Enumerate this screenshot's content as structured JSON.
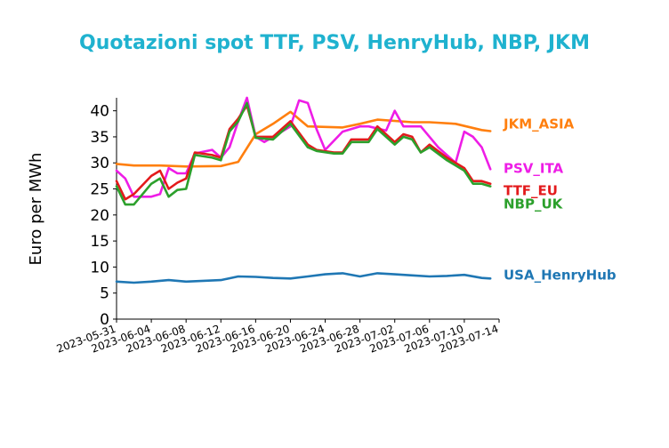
{
  "chart_data": {
    "type": "line",
    "title": "Quotazioni spot TTF, PSV, HenryHub, NBP, JKM",
    "xlabel": "",
    "ylabel": "Euro per MWh",
    "ylim": [
      0,
      42.5
    ],
    "xlim": [
      "2023-05-31",
      "2023-07-14"
    ],
    "yticks": [
      0,
      5,
      10,
      15,
      20,
      25,
      30,
      35,
      40
    ],
    "xticks": [
      "2023-05-31",
      "2023-06-04",
      "2023-06-08",
      "2023-06-12",
      "2023-06-16",
      "2023-06-20",
      "2023-06-24",
      "2023-06-28",
      "2023-07-02",
      "2023-07-06",
      "2023-07-10",
      "2023-07-14"
    ],
    "grid": false,
    "legend": "labels at right end of each line",
    "series": [
      {
        "name": "JKM_ASIA",
        "color": "#ff7f0e",
        "x": [
          "2023-05-31",
          "2023-06-02",
          "2023-06-05",
          "2023-06-08",
          "2023-06-12",
          "2023-06-14",
          "2023-06-16",
          "2023-06-18",
          "2023-06-20",
          "2023-06-22",
          "2023-06-26",
          "2023-06-28",
          "2023-06-30",
          "2023-07-04",
          "2023-07-06",
          "2023-07-09",
          "2023-07-12",
          "2023-07-13"
        ],
        "y": [
          29.8,
          29.5,
          29.5,
          29.3,
          29.4,
          30.2,
          35.5,
          37.5,
          39.8,
          37.0,
          36.8,
          37.5,
          38.3,
          37.8,
          37.8,
          37.5,
          36.3,
          36.1
        ]
      },
      {
        "name": "PSV_ITA",
        "color": "#ee1de6",
        "x": [
          "2023-05-31",
          "2023-06-01",
          "2023-06-02",
          "2023-06-04",
          "2023-06-05",
          "2023-06-06",
          "2023-06-07",
          "2023-06-08",
          "2023-06-09",
          "2023-06-11",
          "2023-06-12",
          "2023-06-13",
          "2023-06-14",
          "2023-06-15",
          "2023-06-16",
          "2023-06-17",
          "2023-06-19",
          "2023-06-20",
          "2023-06-21",
          "2023-06-22",
          "2023-06-23",
          "2023-06-24",
          "2023-06-26",
          "2023-06-28",
          "2023-06-29",
          "2023-07-01",
          "2023-07-02",
          "2023-07-03",
          "2023-07-05",
          "2023-07-06",
          "2023-07-07",
          "2023-07-09",
          "2023-07-10",
          "2023-07-11",
          "2023-07-12",
          "2023-07-13"
        ],
        "y": [
          28.5,
          27.0,
          23.5,
          23.5,
          24.0,
          29.0,
          28.0,
          28.0,
          31.8,
          32.5,
          31.0,
          33.0,
          38.0,
          42.5,
          35.0,
          34.0,
          36.0,
          37.0,
          42.0,
          41.5,
          36.5,
          32.5,
          36.0,
          37.0,
          37.0,
          36.2,
          40.0,
          37.0,
          37.0,
          35.0,
          33.0,
          30.0,
          36.0,
          35.0,
          33.0,
          28.8
        ]
      },
      {
        "name": "TTF_EU",
        "color": "#e31a1c",
        "x": [
          "2023-05-31",
          "2023-06-01",
          "2023-06-02",
          "2023-06-04",
          "2023-06-05",
          "2023-06-06",
          "2023-06-07",
          "2023-06-08",
          "2023-06-09",
          "2023-06-11",
          "2023-06-12",
          "2023-06-13",
          "2023-06-14",
          "2023-06-15",
          "2023-06-16",
          "2023-06-18",
          "2023-06-20",
          "2023-06-22",
          "2023-06-23",
          "2023-06-25",
          "2023-06-26",
          "2023-06-27",
          "2023-06-29",
          "2023-06-30",
          "2023-07-02",
          "2023-07-03",
          "2023-07-04",
          "2023-07-05",
          "2023-07-06",
          "2023-07-08",
          "2023-07-10",
          "2023-07-11",
          "2023-07-12",
          "2023-07-13"
        ],
        "y": [
          26.5,
          23.0,
          24.0,
          27.5,
          28.5,
          25.0,
          26.2,
          27.0,
          32.0,
          31.5,
          31.0,
          36.5,
          38.5,
          41.0,
          35.0,
          35.0,
          38.0,
          33.5,
          32.5,
          32.0,
          32.0,
          34.5,
          34.5,
          37.0,
          34.0,
          35.5,
          35.0,
          32.0,
          33.5,
          31.0,
          29.0,
          26.5,
          26.5,
          26.0
        ]
      },
      {
        "name": "NBP_UK",
        "color": "#2ca02c",
        "x": [
          "2023-05-31",
          "2023-06-01",
          "2023-06-02",
          "2023-06-04",
          "2023-06-05",
          "2023-06-06",
          "2023-06-07",
          "2023-06-08",
          "2023-06-09",
          "2023-06-11",
          "2023-06-12",
          "2023-06-13",
          "2023-06-14",
          "2023-06-15",
          "2023-06-16",
          "2023-06-18",
          "2023-06-20",
          "2023-06-22",
          "2023-06-23",
          "2023-06-25",
          "2023-06-26",
          "2023-06-27",
          "2023-06-29",
          "2023-06-30",
          "2023-07-02",
          "2023-07-03",
          "2023-07-04",
          "2023-07-05",
          "2023-07-06",
          "2023-07-08",
          "2023-07-10",
          "2023-07-11",
          "2023-07-12",
          "2023-07-13"
        ],
        "y": [
          25.5,
          22.0,
          22.0,
          26.0,
          27.0,
          23.5,
          24.8,
          25.0,
          31.5,
          31.0,
          30.5,
          36.0,
          38.0,
          41.5,
          34.8,
          34.5,
          37.5,
          33.0,
          32.3,
          31.8,
          31.8,
          34.0,
          34.0,
          36.5,
          33.5,
          35.0,
          34.5,
          32.0,
          33.0,
          30.5,
          28.5,
          26.0,
          26.0,
          25.5
        ]
      },
      {
        "name": "USA_HenryHub",
        "color": "#1f77b4",
        "x": [
          "2023-05-31",
          "2023-06-02",
          "2023-06-04",
          "2023-06-06",
          "2023-06-08",
          "2023-06-12",
          "2023-06-14",
          "2023-06-16",
          "2023-06-18",
          "2023-06-20",
          "2023-06-22",
          "2023-06-24",
          "2023-06-26",
          "2023-06-28",
          "2023-06-30",
          "2023-07-02",
          "2023-07-04",
          "2023-07-06",
          "2023-07-08",
          "2023-07-10",
          "2023-07-12",
          "2023-07-13"
        ],
        "y": [
          7.2,
          7.0,
          7.2,
          7.5,
          7.2,
          7.5,
          8.2,
          8.1,
          7.9,
          7.8,
          8.2,
          8.6,
          8.8,
          8.2,
          8.8,
          8.6,
          8.4,
          8.2,
          8.3,
          8.5,
          7.9,
          7.8
        ]
      }
    ]
  }
}
